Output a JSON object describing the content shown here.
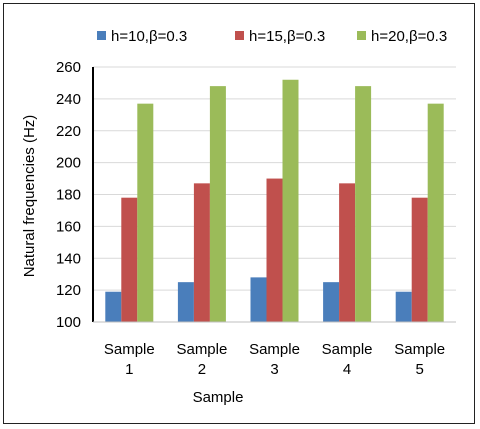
{
  "chart_data": {
    "type": "bar",
    "title": "",
    "xlabel": "Sample",
    "ylabel": "Natural frequencies  (Hz)",
    "categories": [
      [
        "Sample",
        "1"
      ],
      [
        "Sample",
        "2"
      ],
      [
        "Sample",
        "3"
      ],
      [
        "Sample",
        "4"
      ],
      [
        "Sample",
        "5"
      ]
    ],
    "series": [
      {
        "name": "h=10,β=0.3",
        "color": "#4a7ebb",
        "values": [
          119,
          125,
          128,
          125,
          119
        ]
      },
      {
        "name": "h=15,β=0.3",
        "color": "#c0504d",
        "values": [
          178,
          187,
          190,
          187,
          178
        ]
      },
      {
        "name": "h=20,β=0.3",
        "color": "#9bbb59",
        "values": [
          237,
          248,
          252,
          248,
          237
        ]
      }
    ],
    "ylim": [
      100,
      260
    ],
    "yticks": [
      100,
      120,
      140,
      160,
      180,
      200,
      220,
      240,
      260
    ],
    "grid": true,
    "legend_position": "top"
  }
}
